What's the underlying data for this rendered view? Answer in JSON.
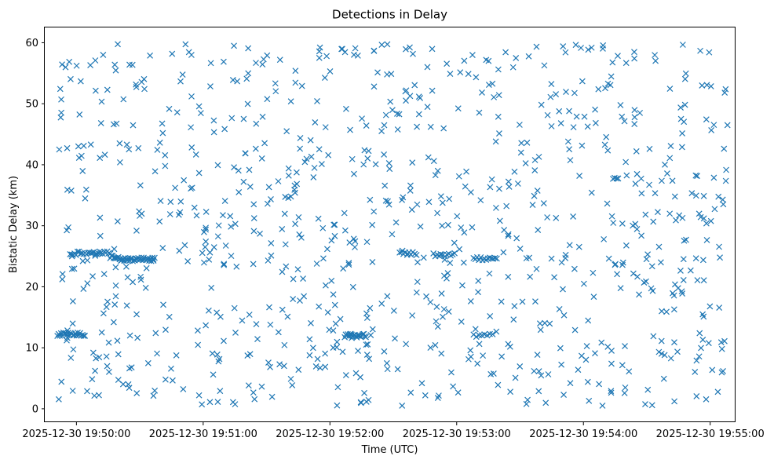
{
  "chart_data": {
    "type": "scatter",
    "title": "Detections in Delay",
    "xlabel": "Time (UTC)",
    "ylabel": "Bistatic Delay (km)",
    "marker": "x",
    "color": "#1f77b4",
    "x_start": "2025-12-30 19:49:51",
    "x_end": "2025-12-30 19:55:09",
    "xlim": [
      "2025-12-30 19:49:45",
      "2025-12-30 19:55:12"
    ],
    "ylim": [
      -2.2,
      62.5
    ],
    "x_ticks": [
      "2025-12-30 19:50:00",
      "2025-12-30 19:51:00",
      "2025-12-30 19:52:00",
      "2025-12-30 19:53:00",
      "2025-12-30 19:54:00",
      "2025-12-30 19:55:00"
    ],
    "y_ticks": [
      0,
      10,
      20,
      30,
      40,
      50,
      60
    ],
    "grid": false,
    "random_count": 900,
    "tracks": [
      {
        "x_from": "2025-12-30 19:49:51",
        "x_to": "2025-12-30 19:50:04",
        "y": 12.2,
        "count": 24
      },
      {
        "x_from": "2025-12-30 19:49:57",
        "x_to": "2025-12-30 19:50:16",
        "y": 25.5,
        "count": 28
      },
      {
        "x_from": "2025-12-30 19:50:16",
        "x_to": "2025-12-30 19:50:21",
        "y": 24.8,
        "count": 10
      },
      {
        "x_from": "2025-12-30 19:50:21",
        "x_to": "2025-12-30 19:50:37",
        "y": 24.5,
        "count": 32
      },
      {
        "x_from": "2025-12-30 19:52:07",
        "x_to": "2025-12-30 19:52:17",
        "y": 12.0,
        "count": 22
      },
      {
        "x_from": "2025-12-30 19:52:33",
        "x_to": "2025-12-30 19:52:41",
        "y": 25.5,
        "count": 10
      },
      {
        "x_from": "2025-12-30 19:52:49",
        "x_to": "2025-12-30 19:52:59",
        "y": 25.2,
        "count": 12
      },
      {
        "x_from": "2025-12-30 19:53:08",
        "x_to": "2025-12-30 19:53:19",
        "y": 24.6,
        "count": 14
      },
      {
        "x_from": "2025-12-30 19:53:08",
        "x_to": "2025-12-30 19:53:17",
        "y": 12.0,
        "count": 8
      }
    ]
  }
}
